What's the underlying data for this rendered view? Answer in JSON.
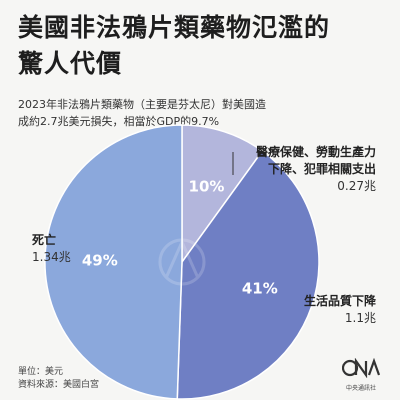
{
  "header": {
    "title_line1": "美國非法鴉片類藥物氾濫的",
    "title_line2": "驚人代價",
    "subtitle_line1": "2023年非法鴉片類藥物（主要是芬太尼）對美國造",
    "subtitle_line2": "成約2.7兆美元損失，相當於GDP的9.7%"
  },
  "chart_data": {
    "type": "pie",
    "title": "美國非法鴉片類藥物氾濫的驚人代價",
    "unit": "兆美元",
    "slices": [
      {
        "label": "醫療保健、勞動生產力下降、犯罪相關支出",
        "label_line1": "醫療保健、勞動生產力",
        "label_line2": "下降、犯罪相關支出",
        "value": 0.27,
        "value_text": "0.27兆",
        "percent": 10,
        "percent_text": "10%",
        "color": "#b3b6dc"
      },
      {
        "label": "生活品質下降",
        "value": 1.1,
        "value_text": "1.1兆",
        "percent": 41,
        "percent_text": "41%",
        "color": "#6f7fc4"
      },
      {
        "label": "死亡",
        "value": 1.34,
        "value_text": "1.34兆",
        "percent": 49,
        "percent_text": "49%",
        "color": "#8ba8dc"
      }
    ]
  },
  "footer": {
    "unit_note": "單位：美元",
    "source_note": "資料來源：美國白宮"
  },
  "logo": {
    "brand": "CNA",
    "sub_text": "中央通訊社"
  }
}
